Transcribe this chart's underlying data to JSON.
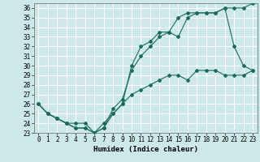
{
  "title": "",
  "xlabel": "Humidex (Indice chaleur)",
  "xlim": [
    -0.5,
    23.5
  ],
  "ylim": [
    23,
    36.5
  ],
  "xticks": [
    0,
    1,
    2,
    3,
    4,
    5,
    6,
    7,
    8,
    9,
    10,
    11,
    12,
    13,
    14,
    15,
    16,
    17,
    18,
    19,
    20,
    21,
    22,
    23
  ],
  "yticks": [
    23,
    24,
    25,
    26,
    27,
    28,
    29,
    30,
    31,
    32,
    33,
    34,
    35,
    36
  ],
  "bg_color": "#cce8e8",
  "line_color": "#1a6b5e",
  "grid_color": "#ffffff",
  "line1_x": [
    0,
    1,
    2,
    3,
    4,
    5,
    6,
    7,
    8,
    9,
    10,
    11,
    12,
    13,
    14,
    15,
    16,
    17,
    18,
    19,
    20,
    21,
    22,
    23
  ],
  "line1_y": [
    26,
    25,
    24.5,
    24,
    23.5,
    23.5,
    23,
    23.5,
    25,
    26,
    30,
    32,
    32.5,
    33.5,
    33.5,
    35,
    35.5,
    35.5,
    35.5,
    35.5,
    36,
    36,
    36,
    36.5
  ],
  "line2_x": [
    0,
    1,
    2,
    3,
    4,
    5,
    6,
    7,
    8,
    9,
    10,
    11,
    12,
    13,
    14,
    15,
    16,
    17,
    18,
    19,
    20,
    21,
    22,
    23
  ],
  "line2_y": [
    26,
    25,
    24.5,
    24,
    23.5,
    23.5,
    23,
    23.5,
    25.5,
    26.5,
    29.5,
    31,
    32,
    33,
    33.5,
    33,
    35,
    35.5,
    35.5,
    35.5,
    36,
    32,
    30,
    29.5
  ],
  "line3_x": [
    0,
    1,
    2,
    3,
    4,
    5,
    6,
    7,
    8,
    9,
    10,
    11,
    12,
    13,
    14,
    15,
    16,
    17,
    18,
    19,
    20,
    21,
    22,
    23
  ],
  "line3_y": [
    26,
    25,
    24.5,
    24,
    24,
    24,
    23,
    24,
    25,
    26,
    27,
    27.5,
    28,
    28.5,
    29,
    29,
    28.5,
    29.5,
    29.5,
    29.5,
    29,
    29,
    29,
    29.5
  ],
  "xlabel_fontsize": 6.5,
  "tick_fontsize": 5.5
}
